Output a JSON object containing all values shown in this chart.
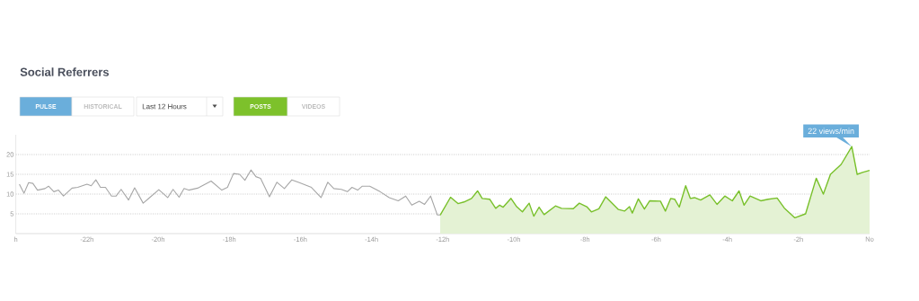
{
  "chart_data": {
    "type": "line",
    "title": "Social Referrers",
    "xlim": [
      -24,
      0
    ],
    "ylim": [
      0,
      25
    ],
    "xticks": [
      {
        "value": -24,
        "label": "h"
      },
      {
        "value": -22,
        "label": "-22h"
      },
      {
        "value": -20,
        "label": "-20h"
      },
      {
        "value": -18,
        "label": "-18h"
      },
      {
        "value": -16,
        "label": "-16h"
      },
      {
        "value": -14,
        "label": "-14h"
      },
      {
        "value": -12,
        "label": "-12h"
      },
      {
        "value": -10,
        "label": "-10h"
      },
      {
        "value": -8,
        "label": "-8h"
      },
      {
        "value": -6,
        "label": "-6h"
      },
      {
        "value": -4,
        "label": "-4h"
      },
      {
        "value": -2,
        "label": "-2h"
      },
      {
        "value": 0,
        "label": "No"
      }
    ],
    "yticks": [
      5,
      10,
      15,
      20
    ],
    "grid": "y",
    "series": [
      {
        "color": "#a6a6a6",
        "x": [
          -23.9,
          -23.77,
          -23.64,
          -23.52,
          -23.39,
          -23.18,
          -23.08,
          -22.93,
          -22.8,
          -22.66,
          -22.42,
          -22.26,
          -22.0,
          -21.88,
          -21.75,
          -21.62,
          -21.48,
          -21.31,
          -21.18,
          -21.04,
          -20.83,
          -20.66,
          -20.42,
          -20.24,
          -19.98,
          -19.73,
          -19.58,
          -19.41,
          -19.27,
          -19.14,
          -18.89,
          -18.51,
          -18.21,
          -18.05,
          -17.88,
          -17.71,
          -17.56,
          -17.39,
          -17.25,
          -17.12,
          -16.87,
          -16.66,
          -16.45,
          -16.24,
          -16.03,
          -15.69,
          -15.42,
          -15.23,
          -15.06,
          -14.85,
          -14.68,
          -14.55,
          -14.39,
          -14.26,
          -14.05,
          -13.76,
          -13.5,
          -13.25,
          -13.04,
          -12.87,
          -12.66,
          -12.51,
          -12.34,
          -12.15,
          -12.07
        ],
        "values": [
          12.5,
          10.2,
          12.9,
          12.7,
          11.0,
          11.4,
          12.0,
          10.6,
          11.0,
          9.5,
          11.5,
          11.7,
          12.5,
          12.1,
          13.6,
          11.7,
          11.7,
          9.5,
          9.5,
          11.2,
          8.5,
          11.6,
          7.7,
          9.1,
          11.1,
          9.1,
          11.2,
          9.2,
          11.4,
          11.0,
          11.5,
          13.3,
          11.0,
          11.7,
          15.2,
          15.0,
          13.5,
          16.1,
          14.4,
          14.0,
          9.3,
          13.0,
          11.4,
          13.6,
          12.9,
          11.7,
          9.1,
          13.0,
          11.4,
          11.2,
          10.6,
          11.7,
          11.0,
          12.0,
          12.0,
          10.6,
          9.1,
          8.3,
          9.5,
          7.2,
          8.2,
          7.4,
          9.5,
          4.7,
          4.7
        ]
      },
      {
        "type": "area",
        "color": "#78c02a",
        "x": [
          -12.07,
          -11.78,
          -11.57,
          -11.4,
          -11.19,
          -11.02,
          -10.89,
          -10.68,
          -10.51,
          -10.4,
          -10.3,
          -10.08,
          -9.92,
          -9.76,
          -9.57,
          -9.44,
          -9.29,
          -9.15,
          -8.83,
          -8.66,
          -8.33,
          -8.16,
          -7.95,
          -7.82,
          -7.61,
          -7.42,
          -7.23,
          -7.06,
          -6.89,
          -6.75,
          -6.67,
          -6.5,
          -6.33,
          -6.18,
          -5.88,
          -5.74,
          -5.59,
          -5.48,
          -5.35,
          -5.17,
          -5.04,
          -4.92,
          -4.75,
          -4.49,
          -4.29,
          -4.07,
          -3.86,
          -3.67,
          -3.53,
          -3.36,
          -3.06,
          -2.85,
          -2.6,
          -2.4,
          -2.1,
          -1.8,
          -1.5,
          -1.3,
          -1.1,
          -0.8,
          -0.5,
          -0.35,
          -0.2,
          0
        ],
        "values": [
          4.7,
          9.2,
          7.6,
          8.0,
          8.9,
          10.8,
          8.9,
          8.7,
          6.4,
          7.2,
          6.7,
          8.9,
          6.8,
          5.5,
          7.7,
          4.4,
          6.7,
          4.8,
          7.0,
          6.4,
          6.3,
          7.7,
          6.8,
          5.5,
          6.3,
          9.3,
          7.6,
          6.1,
          5.7,
          6.8,
          5.2,
          8.8,
          6.2,
          8.3,
          8.2,
          5.7,
          8.9,
          8.7,
          6.7,
          12.1,
          8.9,
          9.1,
          8.5,
          9.8,
          7.4,
          9.5,
          8.3,
          10.8,
          7.2,
          9.5,
          8.3,
          8.7,
          9.0,
          6.5,
          4.0,
          5.0,
          14.0,
          10.0,
          15.0,
          17.5,
          22,
          15.0,
          15.5,
          16.0
        ]
      }
    ],
    "annotations": [
      "PULSE",
      "HISTORICAL",
      "Last 12 Hours",
      "POSTS",
      "VIDEOS",
      {
        "text": "22 views/min",
        "x": -0.5,
        "y": 22
      }
    ]
  }
}
